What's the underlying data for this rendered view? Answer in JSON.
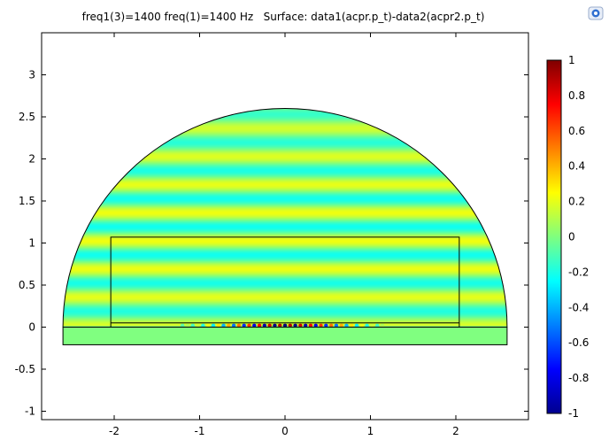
{
  "chart_data": {
    "type": "heatmap",
    "title": "freq1(3)=1400 freq(1)=1400 Hz   Surface: data1(acpr.p_t)-data2(acpr2.p_t)",
    "xlim": [
      -2.85,
      2.85
    ],
    "ylim": [
      -1.1,
      3.5
    ],
    "x_ticks": [
      "-2",
      "-1",
      "0",
      "1",
      "2"
    ],
    "x_tick_values": [
      -2,
      -1,
      0,
      1,
      2
    ],
    "y_ticks": [
      "-1",
      "-0.5",
      "0",
      "0.5",
      "1",
      "1.5",
      "2",
      "2.5",
      "3"
    ],
    "y_tick_values": [
      -1,
      -0.5,
      0,
      0.5,
      1,
      1.5,
      2,
      2.5,
      3
    ],
    "colorbar": {
      "min": -1,
      "max": 1,
      "colormap": "jet",
      "ticks": [
        "1",
        "0.8",
        "0.6",
        "0.4",
        "0.2",
        "0",
        "-0.2",
        "-0.4",
        "-0.6",
        "-0.8",
        "-1"
      ],
      "tick_values": [
        1,
        0.8,
        0.6,
        0.4,
        0.2,
        0,
        -0.2,
        -0.4,
        -0.6,
        -0.8,
        -1
      ]
    },
    "geometry": {
      "semicircle_radius": 2.6,
      "inner_rectangle": {
        "x": [
          -2.04,
          2.04
        ],
        "y": [
          0,
          1.07
        ]
      },
      "base_strip": {
        "x": [
          -2.6,
          2.6
        ],
        "y": [
          -0.21,
          0
        ]
      },
      "inner_line_y": 0.05
    },
    "field": {
      "description_values": "banded standing-wave pattern, values mostly in [-0.2, 0.2], strong localized extremes near y=0",
      "band_spacing": 0.335,
      "peak_value": 1.0,
      "trough_value": -1.0
    }
  },
  "icons": {
    "corner": "comsol-logo-icon"
  }
}
